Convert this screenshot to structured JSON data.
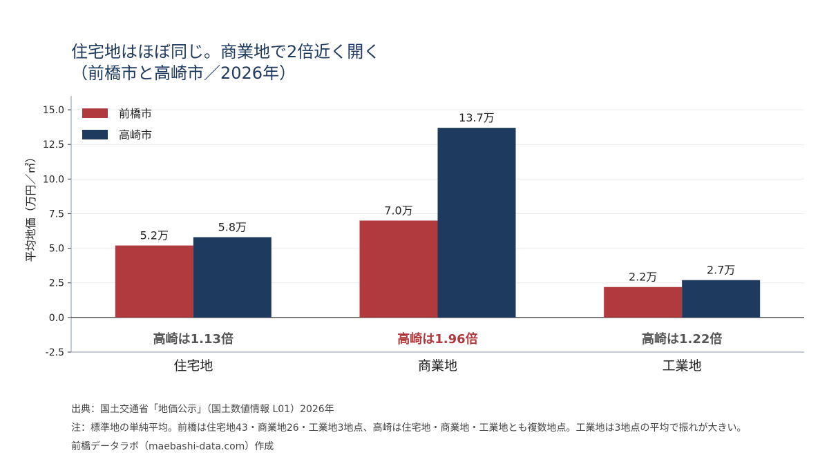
{
  "title_line1": "住宅地はほぼ同じ。商業地で2倍近く開く",
  "title_line2": "（前橋市と高崎市／2026年）",
  "chart_data": {
    "type": "bar",
    "categories": [
      "住宅地",
      "商業地",
      "工業地"
    ],
    "series": [
      {
        "name": "前橋市",
        "values": [
          5.2,
          7.0,
          2.2
        ],
        "color": "#b03a3d",
        "labels": [
          "5.2万",
          "7.0万",
          "2.2万"
        ]
      },
      {
        "name": "高崎市",
        "values": [
          5.8,
          13.7,
          2.7
        ],
        "color": "#1f3a5f",
        "labels": [
          "5.8万",
          "13.7万",
          "2.7万"
        ]
      }
    ],
    "ylabel": "平均地価（万円／㎡）",
    "ylim": [
      -2.5,
      16
    ],
    "yticks": [
      "-2.5",
      "0.0",
      "2.5",
      "5.0",
      "7.5",
      "10.0",
      "12.5",
      "15.0"
    ],
    "legend_position": "top-left",
    "grid": true,
    "ratio_annotations": [
      {
        "text": "高崎は1.13倍",
        "color": "#555555"
      },
      {
        "text": "高崎は1.96倍",
        "color": "#b03a3d"
      },
      {
        "text": "高崎は1.22倍",
        "color": "#555555"
      }
    ]
  },
  "footer": {
    "source": "出典：国土交通省「地価公示」（国土数値情報 L01）2026年",
    "note": "注：標準地の単純平均。前橋は住宅地43・商業地26・工業地3地点、高崎は住宅地・商業地・工業地とも複数地点。工業地は3地点の平均で振れが大きい。",
    "credit": "前橋データラボ（maebashi-data.com）作成"
  }
}
